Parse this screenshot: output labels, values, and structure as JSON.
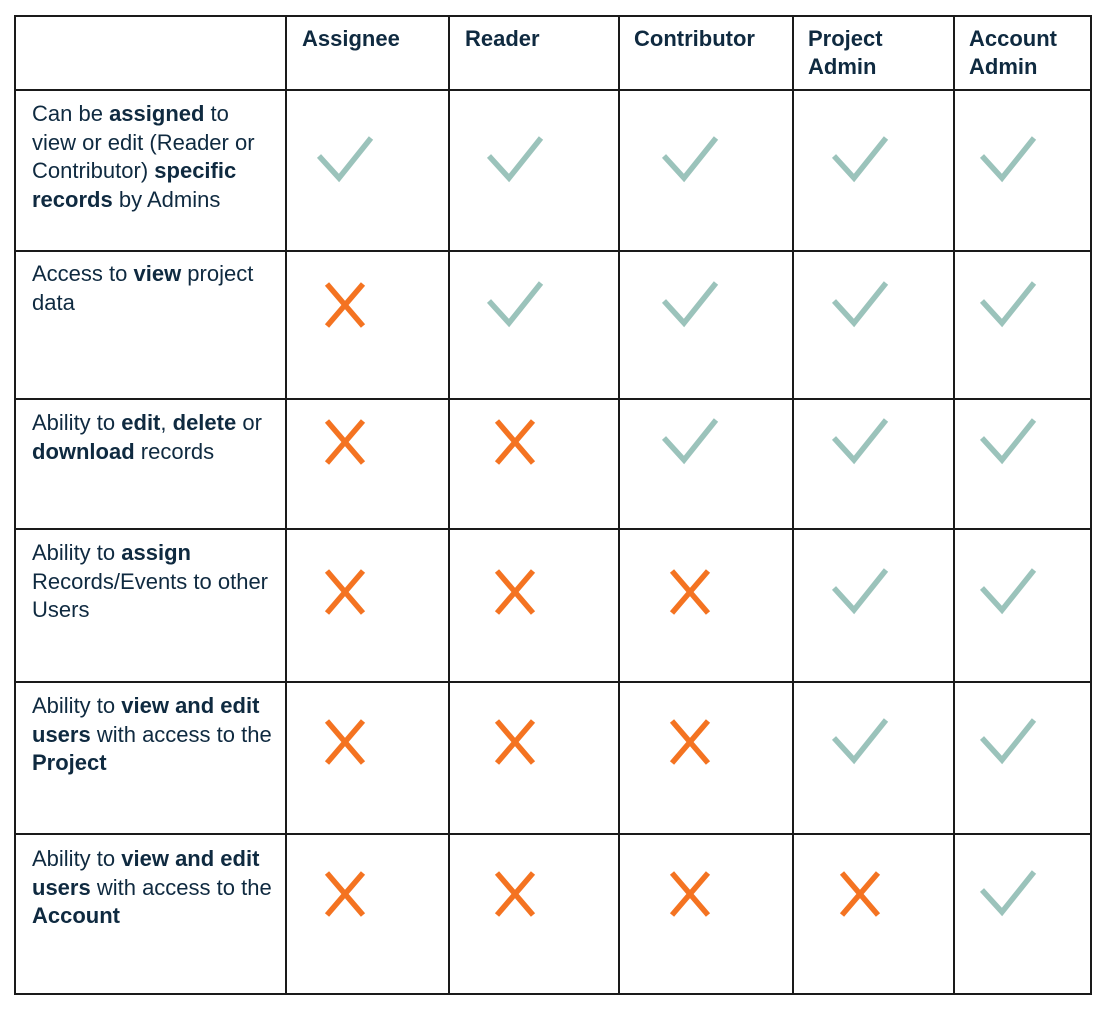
{
  "colors": {
    "check": "#9bc3bb",
    "cross": "#f47321",
    "text": "#0f2a40",
    "grid": "#1a1a1a"
  },
  "columns": [
    {
      "label": "Assignee"
    },
    {
      "label": "Reader"
    },
    {
      "label": "Contributor"
    },
    {
      "label": "Project\nAdmin"
    },
    {
      "label": "Account\nAdmin"
    }
  ],
  "rows": [
    {
      "feature": [
        {
          "t": "Can be ",
          "b": false
        },
        {
          "t": "assigned",
          "b": true
        },
        {
          "t": " to view or edit (Reader or Contributor) ",
          "b": false
        },
        {
          "t": "specific records",
          "b": true
        },
        {
          "t": " by Admins",
          "b": false
        }
      ],
      "values": [
        "check",
        "check",
        "check",
        "check",
        "check"
      ]
    },
    {
      "feature": [
        {
          "t": "Access to ",
          "b": false
        },
        {
          "t": "view",
          "b": true
        },
        {
          "t": " project data",
          "b": false
        }
      ],
      "values": [
        "cross",
        "check",
        "check",
        "check",
        "check"
      ]
    },
    {
      "feature": [
        {
          "t": "Ability to ",
          "b": false
        },
        {
          "t": "edit",
          "b": true
        },
        {
          "t": ", ",
          "b": false
        },
        {
          "t": "delete",
          "b": true
        },
        {
          "t": " or ",
          "b": false
        },
        {
          "t": "download",
          "b": true
        },
        {
          "t": " records",
          "b": false
        }
      ],
      "values": [
        "cross",
        "cross",
        "check",
        "check",
        "check"
      ]
    },
    {
      "feature": [
        {
          "t": "Ability to ",
          "b": false
        },
        {
          "t": "assign",
          "b": true
        },
        {
          "t": " Records/Events to other Users",
          "b": false
        }
      ],
      "values": [
        "cross",
        "cross",
        "cross",
        "check",
        "check"
      ]
    },
    {
      "feature": [
        {
          "t": "Ability to ",
          "b": false
        },
        {
          "t": "view and edit users",
          "b": true
        },
        {
          "t": " with access to the ",
          "b": false
        },
        {
          "t": "Project",
          "b": true
        }
      ],
      "values": [
        "cross",
        "cross",
        "cross",
        "check",
        "check"
      ]
    },
    {
      "feature": [
        {
          "t": "Ability to ",
          "b": false
        },
        {
          "t": "view and edit users",
          "b": true
        },
        {
          "t": " with access to the ",
          "b": false
        },
        {
          "t": "Account",
          "b": true
        }
      ],
      "values": [
        "cross",
        "cross",
        "cross",
        "cross",
        "check"
      ]
    }
  ]
}
